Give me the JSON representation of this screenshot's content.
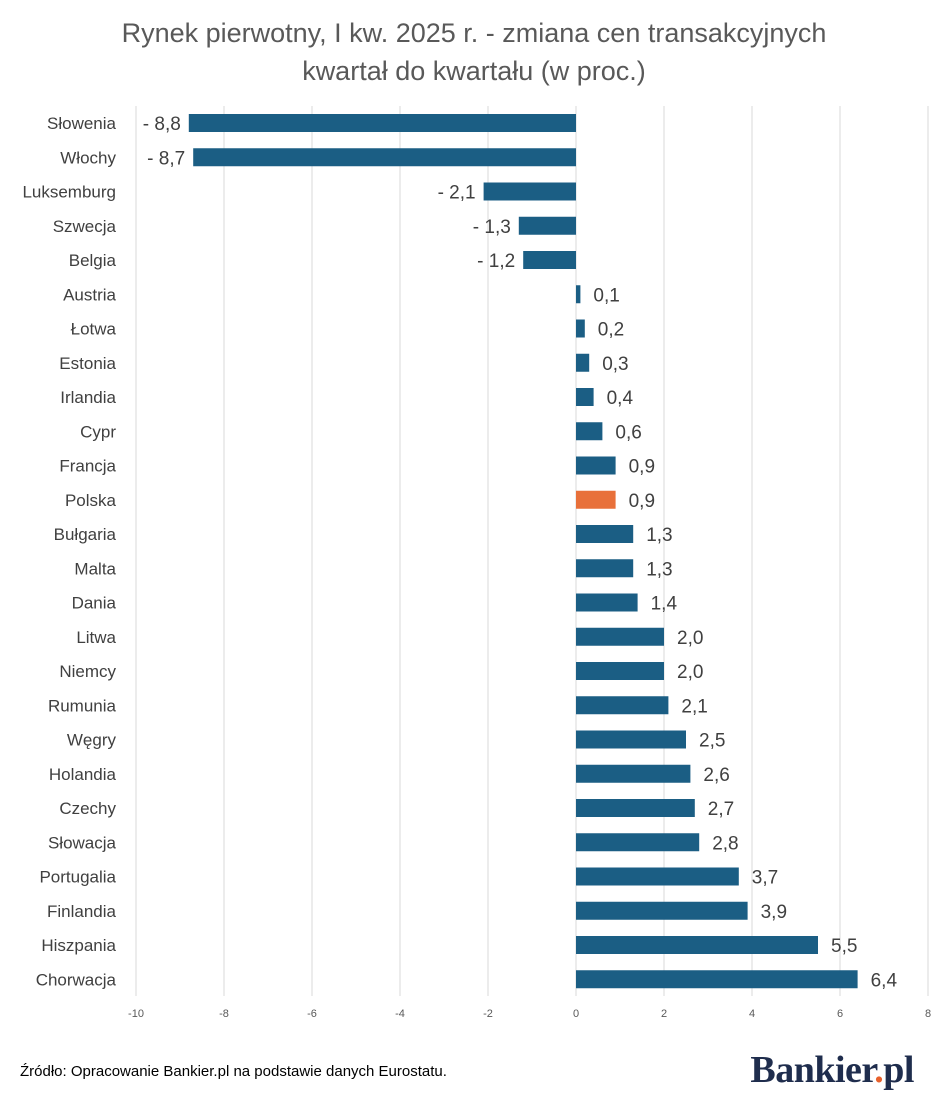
{
  "chart_data": {
    "type": "bar",
    "orientation": "horizontal",
    "title_line1": "Rynek pierwotny, I kw. 2025 r. - zmiana cen transakcyjnych",
    "title_line2": "kwartał do kwartału (w proc.)",
    "xlim": [
      -10,
      8
    ],
    "x_ticks": [
      -10,
      -8,
      -6,
      -4,
      -2,
      0,
      2,
      4,
      6,
      8
    ],
    "grid": "vertical",
    "categories": [
      "Słowenia",
      "Włochy",
      "Luksemburg",
      "Szwecja",
      "Belgia",
      "Austria",
      "Łotwa",
      "Estonia",
      "Irlandia",
      "Cypr",
      "Francja",
      "Polska",
      "Bułgaria",
      "Malta",
      "Dania",
      "Litwa",
      "Niemcy",
      "Rumunia",
      "Węgry",
      "Holandia",
      "Czechy",
      "Słowacja",
      "Portugalia",
      "Finlandia",
      "Hiszpania",
      "Chorwacja"
    ],
    "values": [
      -8.8,
      -8.7,
      -2.1,
      -1.3,
      -1.2,
      0.1,
      0.2,
      0.3,
      0.4,
      0.6,
      0.9,
      0.9,
      1.3,
      1.3,
      1.4,
      2.0,
      2.0,
      2.1,
      2.5,
      2.6,
      2.7,
      2.8,
      3.7,
      3.9,
      5.5,
      6.4
    ],
    "data_labels": [
      "- 8,8",
      "- 8,7",
      "- 2,1",
      "- 1,3",
      "- 1,2",
      "0,1",
      "0,2",
      "0,3",
      "0,4",
      "0,6",
      "0,9",
      "0,9",
      "1,3",
      "1,3",
      "1,4",
      "2,0",
      "2,0",
      "2,1",
      "2,5",
      "2,6",
      "2,7",
      "2,8",
      "3,7",
      "3,9",
      "5,5",
      "6,4"
    ],
    "colors": {
      "default": "#1b5e84",
      "highlight": "#e8703a",
      "grid": "#d9d9d9"
    },
    "highlight_category": "Polska"
  },
  "footer": {
    "source": "Źródło: Opracowanie Bankier.pl na podstawie danych Eurostatu.",
    "logo_main": "Bankier",
    "logo_dot": ".",
    "logo_tail": "pl"
  }
}
